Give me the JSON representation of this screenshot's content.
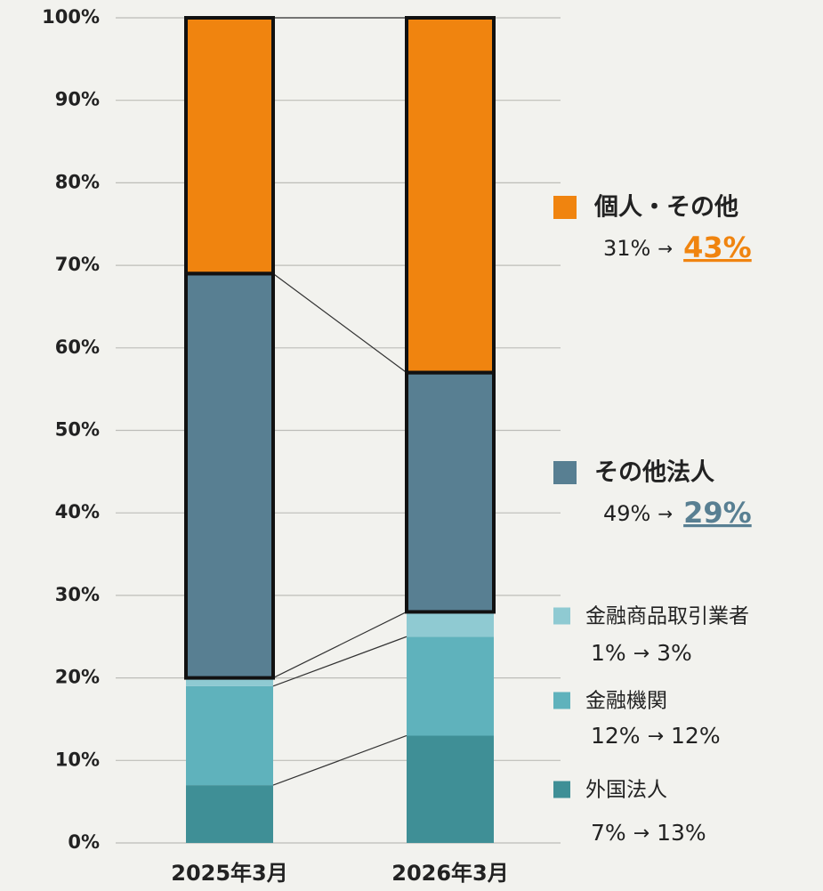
{
  "chart_data": {
    "type": "stacked_bar",
    "categories": [
      "2025年3月",
      "2026年3月"
    ],
    "arrow": "→",
    "series": [
      {
        "name": "外国法人",
        "color": "#3f8f96",
        "values": [
          7,
          13
        ],
        "value_labels": [
          "7%",
          "13%"
        ]
      },
      {
        "name": "金融機関",
        "color": "#5fb2bc",
        "values": [
          12,
          12
        ],
        "value_labels": [
          "12%",
          "12%"
        ]
      },
      {
        "name": "金融商品取引業者",
        "color": "#8fcad2",
        "values": [
          1,
          3
        ],
        "value_labels": [
          "1%",
          "3%"
        ]
      },
      {
        "name": "その他法人",
        "color": "#587f92",
        "values": [
          49,
          29
        ],
        "value_labels": [
          "49%",
          "29%"
        ],
        "emphasis": true
      },
      {
        "name": "個人・その他",
        "color": "#f0840f",
        "values": [
          31,
          43
        ],
        "value_labels": [
          "31%",
          "43%"
        ],
        "emphasis": true
      }
    ],
    "ylim": [
      0,
      100
    ],
    "yticks": [
      {
        "value": 0,
        "label": "0%"
      },
      {
        "value": 10,
        "label": "10%"
      },
      {
        "value": 20,
        "label": "20%"
      },
      {
        "value": 30,
        "label": "30%"
      },
      {
        "value": 40,
        "label": "40%"
      },
      {
        "value": 50,
        "label": "50%"
      },
      {
        "value": 60,
        "label": "60%"
      },
      {
        "value": 70,
        "label": "70%"
      },
      {
        "value": 80,
        "label": "80%"
      },
      {
        "value": 90,
        "label": "90%"
      },
      {
        "value": 100,
        "label": "100%"
      }
    ],
    "grid": true
  }
}
